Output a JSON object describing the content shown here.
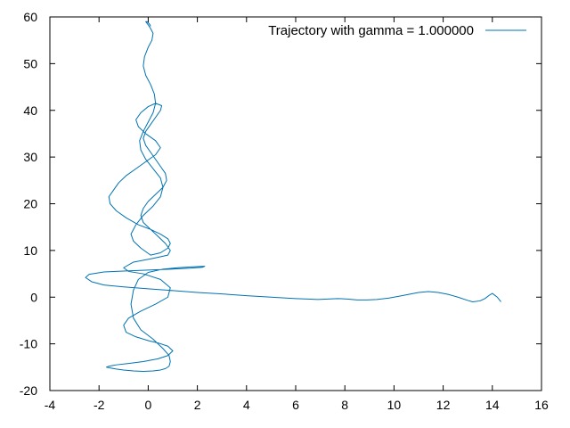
{
  "chart_data": {
    "type": "line",
    "title": "",
    "xlabel": "",
    "ylabel": "",
    "xlim": [
      -4,
      16
    ],
    "ylim": [
      -20,
      60
    ],
    "xticks": [
      -4,
      -2,
      0,
      2,
      4,
      6,
      8,
      10,
      12,
      14,
      16
    ],
    "yticks": [
      -20,
      -10,
      0,
      10,
      20,
      30,
      40,
      50,
      60
    ],
    "grid": false,
    "legend_position": "top-right",
    "series": [
      {
        "name": "Trajectory with gamma = 1.000000",
        "color": "#0072b2",
        "x": [
          14.35,
          14.2,
          14.0,
          13.9,
          13.7,
          13.5,
          13.2,
          13.0,
          12.6,
          12.2,
          11.8,
          11.4,
          11.0,
          10.6,
          10.2,
          9.8,
          9.3,
          8.9,
          8.5,
          8.1,
          7.7,
          7.3,
          6.9,
          6.5,
          6.0,
          5.0,
          4.0,
          3.0,
          2.0,
          1.0,
          0.0,
          -1.0,
          -1.8,
          -2.3,
          -2.55,
          -2.4,
          -1.8,
          -0.9,
          0.0,
          0.9,
          1.7,
          2.2,
          2.3,
          1.8,
          1.2,
          0.6,
          0.0,
          -0.4,
          -0.6,
          -0.7,
          -0.6,
          -0.3,
          0.2,
          0.6,
          0.85,
          0.9,
          0.85,
          0.7,
          0.5,
          0.2,
          -0.2,
          -0.6,
          -1.0,
          -1.3,
          -1.5,
          -1.7,
          -1.6,
          -1.3,
          -0.8,
          -0.2,
          0.4,
          0.8,
          1.0,
          0.8,
          0.4,
          0.0,
          -0.5,
          -0.9,
          -1.0,
          -0.8,
          -0.3,
          0.3,
          0.8,
          0.9,
          0.5,
          -0.2,
          -0.8,
          -1.0,
          -0.6,
          0.2,
          0.8,
          0.9,
          0.7,
          0.4,
          0.1,
          -0.2,
          -0.3,
          -0.2,
          0.0,
          0.3,
          0.6,
          0.75,
          0.7,
          0.5,
          0.3,
          0.1,
          -0.1,
          -0.2,
          -0.1,
          0.1,
          0.3,
          0.5,
          0.55,
          0.3,
          0.0,
          -0.3,
          -0.5,
          -0.4,
          -0.1,
          0.3,
          0.5,
          0.3,
          -0.1,
          -0.5,
          -0.9,
          -1.2,
          -1.4,
          -1.6,
          -1.55,
          -1.3,
          -0.9,
          -0.4,
          0.1,
          0.5,
          0.8,
          0.9,
          0.8,
          0.5,
          0.1,
          -0.3,
          -0.6,
          -0.7,
          -0.5,
          -0.2,
          0.2,
          0.5,
          0.6,
          0.5,
          0.2,
          -0.1,
          -0.3,
          -0.35,
          -0.2,
          0.0,
          0.2,
          0.3,
          0.25,
          0.1,
          -0.1,
          -0.2,
          -0.15,
          0.0,
          0.15,
          0.2,
          0.1,
          0.0,
          -0.1,
          -0.05,
          0.05,
          0.1
        ],
        "y": [
          -1.0,
          0.0,
          0.8,
          0.5,
          -0.3,
          -0.8,
          -1.0,
          -0.7,
          0.0,
          0.6,
          1.0,
          1.2,
          1.0,
          0.6,
          0.2,
          -0.2,
          -0.5,
          -0.6,
          -0.6,
          -0.4,
          -0.3,
          -0.4,
          -0.5,
          -0.4,
          -0.3,
          0.0,
          0.3,
          0.7,
          1.0,
          1.4,
          1.8,
          2.2,
          2.6,
          3.3,
          4.2,
          4.9,
          5.4,
          5.6,
          5.8,
          6.0,
          6.2,
          6.4,
          6.6,
          6.5,
          6.3,
          6.0,
          5.3,
          3.8,
          1.5,
          -1.5,
          -4.5,
          -7.0,
          -9.0,
          -11.0,
          -12.5,
          -13.8,
          -14.8,
          -15.3,
          -15.6,
          -15.8,
          -15.9,
          -15.8,
          -15.6,
          -15.4,
          -15.2,
          -15.0,
          -14.8,
          -14.5,
          -14.2,
          -13.8,
          -13.2,
          -12.5,
          -11.5,
          -10.5,
          -9.8,
          -9.3,
          -8.5,
          -7.5,
          -6.0,
          -4.5,
          -3.0,
          -1.5,
          0.0,
          2.0,
          3.8,
          5.0,
          5.5,
          6.3,
          7.5,
          8.3,
          9.0,
          10.0,
          11.5,
          13.0,
          14.5,
          16.0,
          17.5,
          19.0,
          20.5,
          22.0,
          23.5,
          25.0,
          26.5,
          28.0,
          29.5,
          31.0,
          32.5,
          34.0,
          35.5,
          37.0,
          38.5,
          40.0,
          41.0,
          41.5,
          40.8,
          39.5,
          38.0,
          36.5,
          35.0,
          33.5,
          32.0,
          30.5,
          29.0,
          27.5,
          26.0,
          24.5,
          23.0,
          21.5,
          20.0,
          18.5,
          17.0,
          15.5,
          14.5,
          13.5,
          12.5,
          11.5,
          10.5,
          9.5,
          9.0,
          10.5,
          12.0,
          13.5,
          15.5,
          17.5,
          19.5,
          21.5,
          23.5,
          25.5,
          27.5,
          29.5,
          31.5,
          33.5,
          35.5,
          37.5,
          39.5,
          41.5,
          43.5,
          45.5,
          47.5,
          49.5,
          51.5,
          53.5,
          55.0,
          56.5,
          57.5,
          58.3,
          59.0,
          59.0,
          58.5,
          58.0
        ]
      }
    ]
  }
}
